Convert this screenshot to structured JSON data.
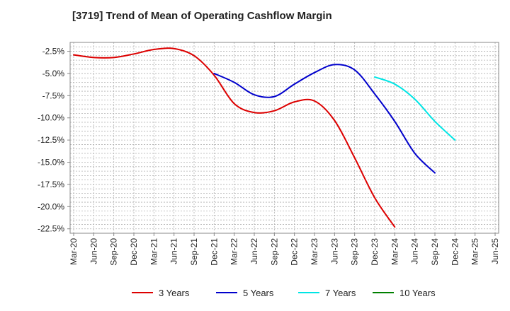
{
  "chart_data": {
    "type": "line",
    "title": "[3719]  Trend of Mean of Operating Cashflow Margin",
    "xlabel": "",
    "ylabel": "",
    "x": [
      "Mar-20",
      "Jun-20",
      "Sep-20",
      "Dec-20",
      "Mar-21",
      "Jun-21",
      "Sep-21",
      "Dec-21",
      "Mar-22",
      "Jun-22",
      "Sep-22",
      "Dec-22",
      "Mar-23",
      "Jun-23",
      "Sep-23",
      "Dec-23",
      "Mar-24",
      "Jun-24",
      "Sep-24",
      "Dec-24",
      "Mar-25",
      "Jun-25"
    ],
    "y_ticks": [
      "-2.5%",
      "-5.0%",
      "-7.5%",
      "-10.0%",
      "-12.5%",
      "-15.0%",
      "-17.5%",
      "-20.0%",
      "-22.5%"
    ],
    "ylim": [
      -23.0,
      -1.5
    ],
    "grid": true,
    "legend_position": "bottom",
    "series": [
      {
        "name": "3 Years",
        "color": "#dd0000",
        "values": [
          -2.9,
          -3.2,
          -3.2,
          -2.8,
          -2.3,
          -2.2,
          -3.0,
          -5.2,
          -8.4,
          -9.4,
          -9.2,
          -8.2,
          -8.1,
          -10.3,
          -14.5,
          -19.0,
          -22.3,
          null,
          null,
          null,
          null,
          null
        ]
      },
      {
        "name": "5 Years",
        "color": "#0000cc",
        "values": [
          null,
          null,
          null,
          null,
          null,
          null,
          null,
          -5.0,
          -6.0,
          -7.4,
          -7.6,
          -6.2,
          -4.9,
          -4.0,
          -4.6,
          -7.3,
          -10.4,
          -14.0,
          -16.2,
          null,
          null,
          null
        ]
      },
      {
        "name": "7 Years",
        "color": "#00e5e5",
        "values": [
          null,
          null,
          null,
          null,
          null,
          null,
          null,
          null,
          null,
          null,
          null,
          null,
          null,
          null,
          null,
          -5.4,
          -6.2,
          -7.9,
          -10.4,
          -12.5,
          null,
          null
        ]
      },
      {
        "name": "10 Years",
        "color": "#008000",
        "values": [
          null,
          null,
          null,
          null,
          null,
          null,
          null,
          null,
          null,
          null,
          null,
          null,
          null,
          null,
          null,
          null,
          null,
          null,
          null,
          null,
          null,
          null
        ]
      }
    ]
  }
}
